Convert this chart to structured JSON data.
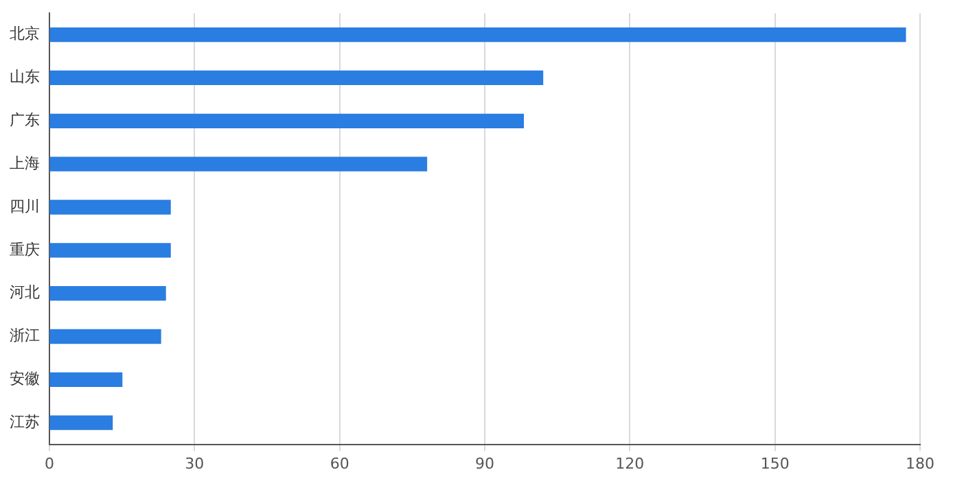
{
  "chart_data": {
    "type": "bar",
    "orientation": "horizontal",
    "categories": [
      "北京",
      "山东",
      "广东",
      "上海",
      "四川",
      "重庆",
      "河北",
      "浙江",
      "安徽",
      "江苏"
    ],
    "values": [
      177,
      102,
      98,
      78,
      25,
      25,
      24,
      23,
      15,
      13
    ],
    "color": "#2a7de1",
    "xlim": [
      0,
      180
    ],
    "xticks": [
      0,
      30,
      60,
      90,
      120,
      150,
      180
    ],
    "grid": "x",
    "legend": false
  }
}
